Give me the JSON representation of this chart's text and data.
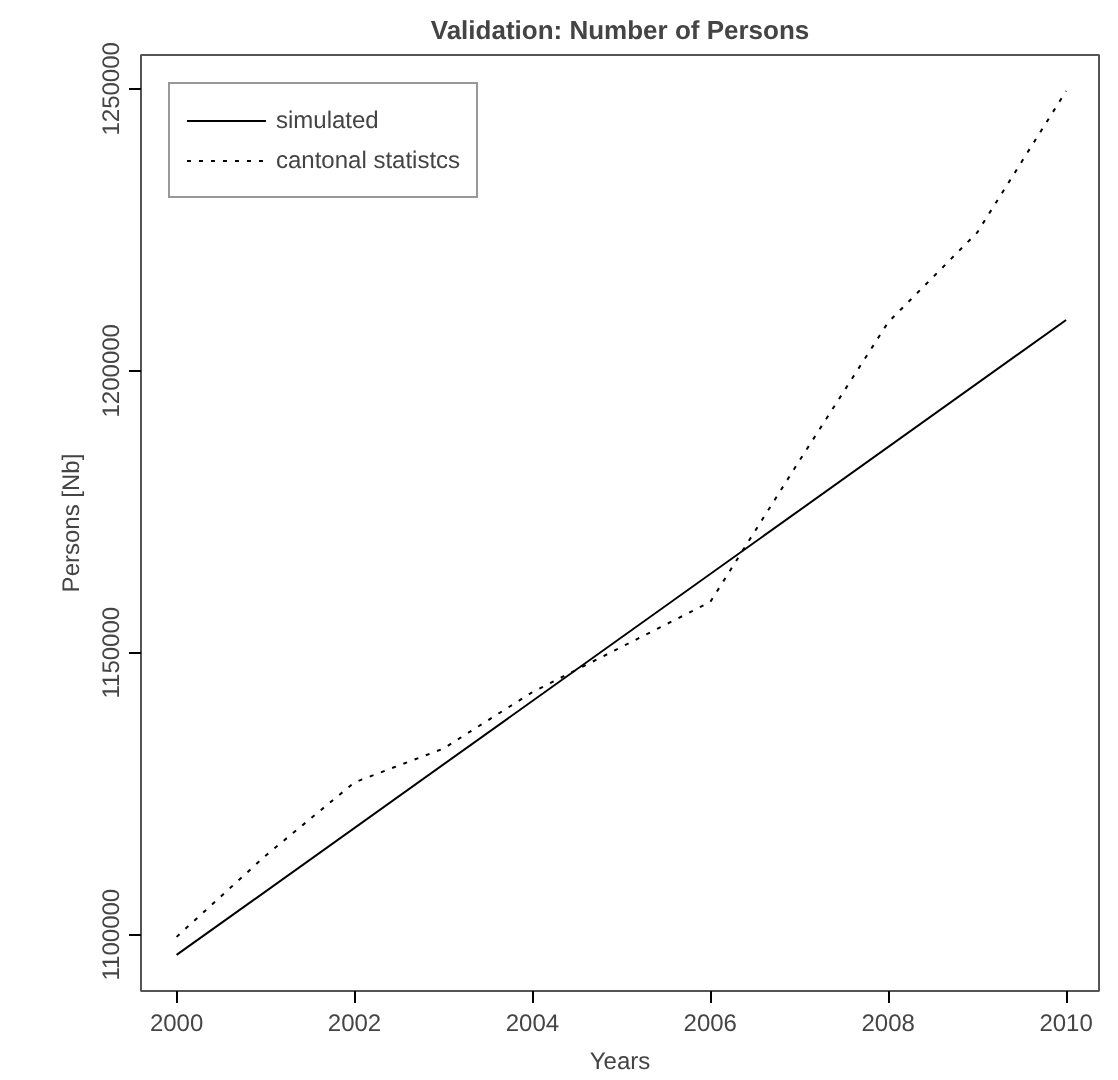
{
  "chart_data": {
    "type": "line",
    "title": "Validation: Number of Persons",
    "xlabel": "Years",
    "ylabel": "Persons [Nb]",
    "x": [
      2000,
      2001,
      2002,
      2003,
      2004,
      2005,
      2006,
      2007,
      2008,
      2009,
      2010
    ],
    "series": [
      {
        "name": "simulated",
        "color": "#000000",
        "line_style": "solid",
        "x": [
          2000,
          2010
        ],
        "values": [
          1096400,
          1209000
        ]
      },
      {
        "name": "cantonal statistcs",
        "color": "#000000",
        "line_style": "dotted",
        "values": [
          1099600,
          1114000,
          1127000,
          1133000,
          1143000,
          1151000,
          1159000,
          1184000,
          1208600,
          1224500,
          1249600
        ]
      }
    ],
    "xlim": [
      1999.6,
      2010.37
    ],
    "ylim": [
      1090000,
      1256000
    ],
    "xticks": [
      2000,
      2002,
      2004,
      2006,
      2008,
      2010
    ],
    "yticks": [
      1100000,
      1150000,
      1200000,
      1250000
    ],
    "grid": false,
    "legend": "top left",
    "marker": "none"
  }
}
